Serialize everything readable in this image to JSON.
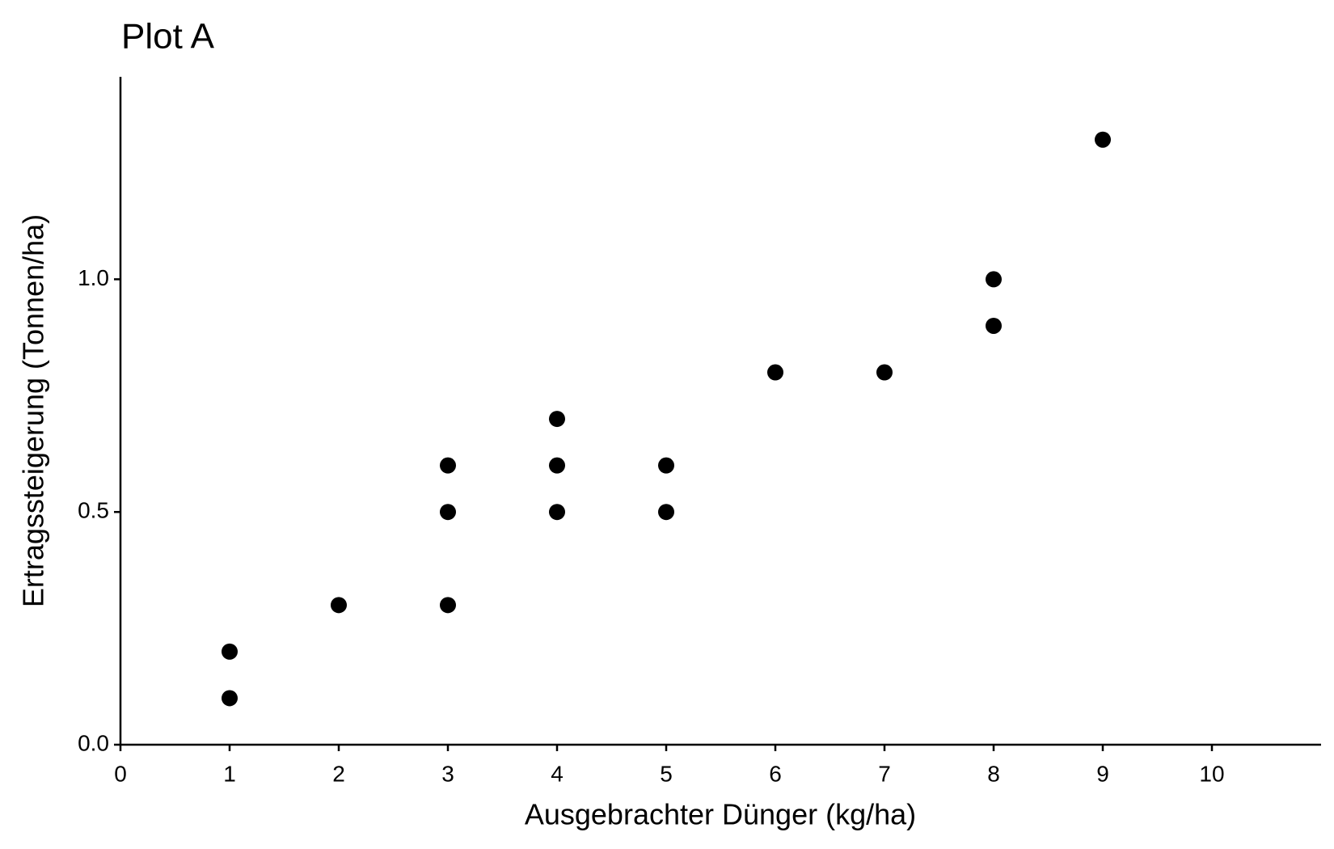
{
  "chart_data": {
    "type": "scatter",
    "title": "Plot A",
    "xlabel": "Ausgebrachter Dünger (kg/ha)",
    "ylabel": "Ertragssteigerung (Tonnen/ha)",
    "x": [
      1,
      1,
      2,
      3,
      3,
      3,
      4,
      4,
      4,
      5,
      5,
      6,
      7,
      8,
      8,
      9
    ],
    "values": [
      0.2,
      0.1,
      0.3,
      0.6,
      0.5,
      0.3,
      0.7,
      0.6,
      0.5,
      0.6,
      0.5,
      0.8,
      0.8,
      1.0,
      0.9,
      1.3
    ],
    "color": "#000000",
    "xlim": [
      0,
      11
    ],
    "xticks": [
      0,
      1,
      2,
      3,
      4,
      5,
      6,
      7,
      8,
      9,
      10
    ],
    "ylim": [
      0,
      1.435
    ],
    "yticks": [
      {
        "value": 0,
        "label": "0.0"
      },
      {
        "value": 0.5,
        "label": "0.5"
      },
      {
        "value": 1,
        "label": "1.0"
      }
    ],
    "grid": false
  }
}
